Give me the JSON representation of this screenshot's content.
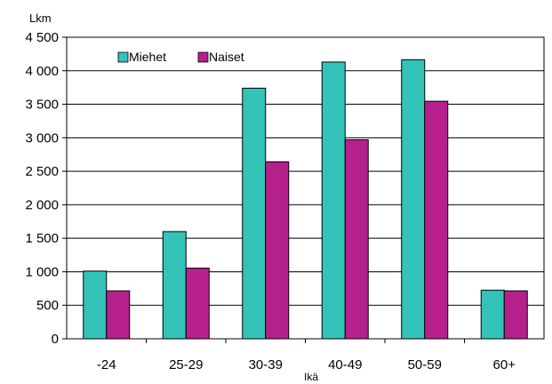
{
  "chart_data": {
    "type": "bar",
    "ylabel": "Lkm",
    "xlabel": "Ikä",
    "categories": [
      "-24",
      "25-29",
      "30-39",
      "40-49",
      "50-59",
      "60+"
    ],
    "series": [
      {
        "name": "Miehet",
        "color": "#33c3b9",
        "values": [
          1010,
          1600,
          3740,
          4130,
          4165,
          725
        ]
      },
      {
        "name": "Naiset",
        "color": "#b5208c",
        "values": [
          715,
          1055,
          2640,
          2970,
          3545,
          715
        ]
      }
    ],
    "ylim": [
      0,
      4500
    ],
    "yticks": [
      0,
      500,
      1000,
      1500,
      2000,
      2500,
      3000,
      3500,
      4000,
      4500
    ],
    "ytick_labels": [
      "0",
      "500",
      "1 000",
      "1 500",
      "2 000",
      "2 500",
      "3 000",
      "3 500",
      "4 000",
      "4 500"
    ],
    "grid": "horizontal",
    "legend_position": "top-left"
  }
}
